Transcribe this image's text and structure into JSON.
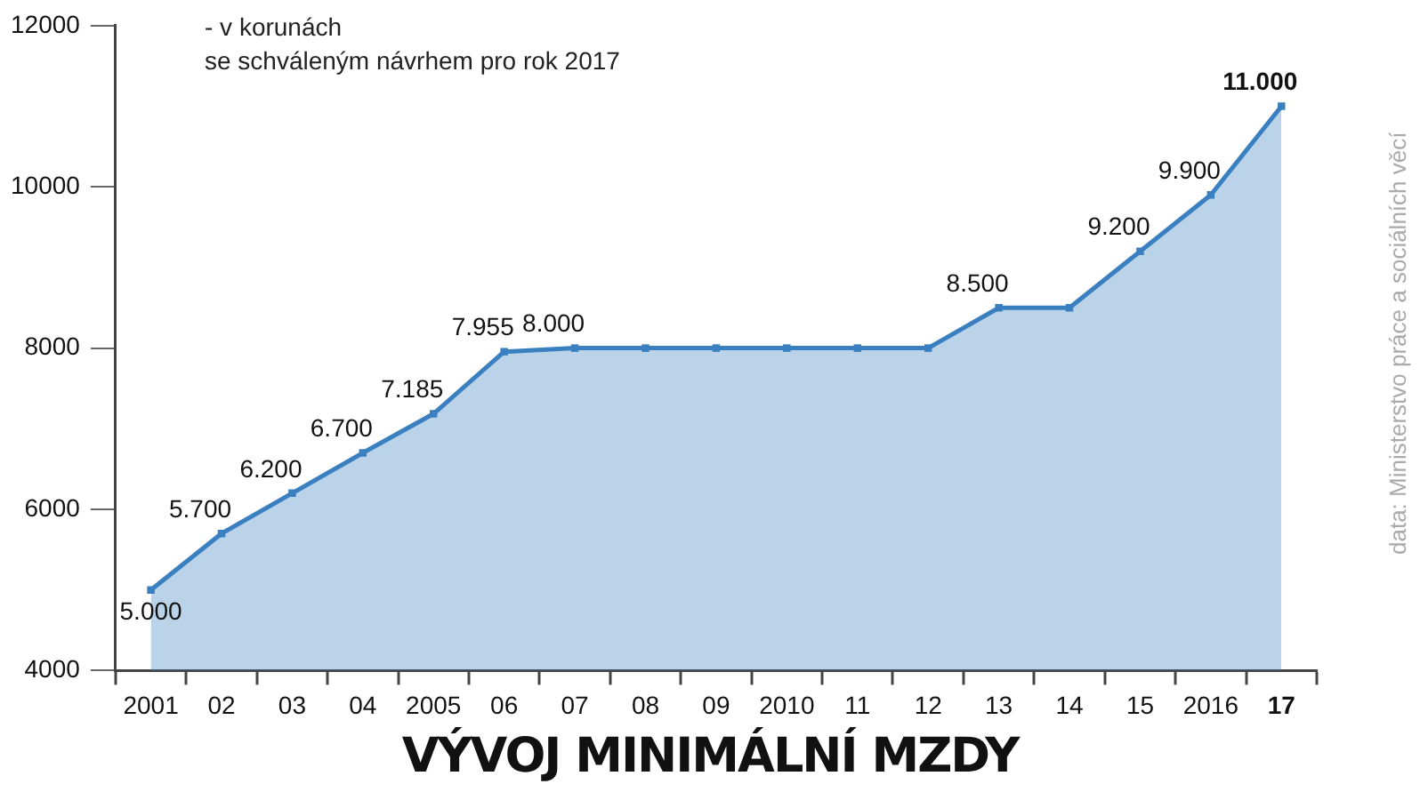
{
  "chart_data": {
    "type": "area",
    "title": "VÝVOJ MINIMÁLNÍ MZDY",
    "annotations": [
      "- v korunách\nse schváleným návrhem pro rok 2017",
      "data: Ministerstvo práce a sociálních věcí"
    ],
    "categories": [
      "2001",
      "02",
      "03",
      "04",
      "2005",
      "06",
      "07",
      "08",
      "09",
      "2010",
      "11",
      "12",
      "13",
      "14",
      "15",
      "2016",
      "17"
    ],
    "series": [
      {
        "color": "#3a80c1",
        "values": [
          5000,
          5700,
          6200,
          6700,
          7185,
          7955,
          8000,
          8000,
          8000,
          8000,
          8000,
          8000,
          8500,
          8500,
          9200,
          9900,
          11000
        ],
        "value_labels": [
          "5.000",
          "5.700",
          "6.200",
          "6.700",
          "7.185",
          "7.955",
          "8.000",
          null,
          null,
          null,
          null,
          null,
          "8.500",
          null,
          "9.200",
          "9.900",
          "11.000"
        ]
      }
    ],
    "ylim": [
      4000,
      12000
    ],
    "yticks": [
      4000,
      6000,
      8000,
      10000,
      12000
    ],
    "grid": false,
    "legend": false,
    "marker": "square",
    "line_style": "solid"
  }
}
